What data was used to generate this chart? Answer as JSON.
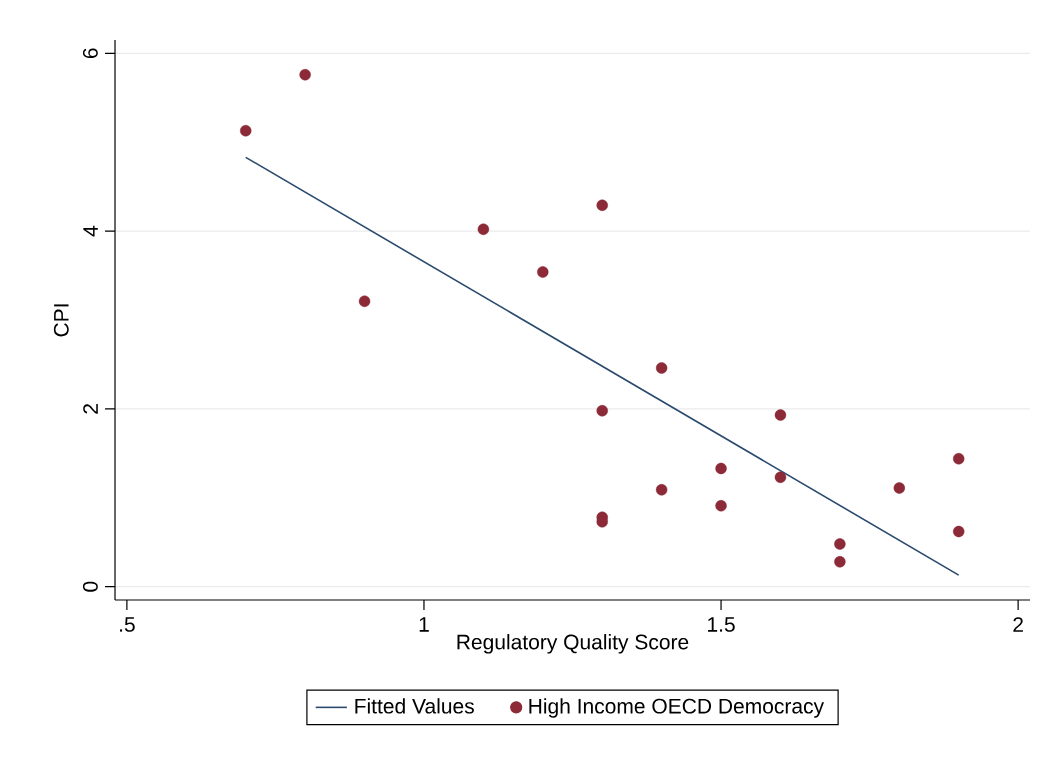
{
  "chart_data": {
    "type": "scatter",
    "xlabel": "Regulatory Quality Score",
    "ylabel": "CPI",
    "xlim": [
      0.48,
      2.02
    ],
    "ylim": [
      -0.15,
      6.15
    ],
    "xticks": [
      {
        "value": 0.5,
        "label": ".5"
      },
      1,
      1.5,
      2
    ],
    "yticks": [
      0,
      2,
      4,
      6
    ],
    "grid": "y",
    "legend": "bottom",
    "marker": "circle",
    "series": [
      {
        "name": "Fitted Values",
        "type": "line",
        "marker": "none",
        "color": "#2a4a6e",
        "x": [
          0.7,
          1.9
        ],
        "values": [
          4.83,
          0.13
        ]
      },
      {
        "name": "High Income OECD Democracy",
        "color": "#8c2a38",
        "x": [
          0.7,
          0.8,
          0.9,
          1.1,
          1.2,
          1.3,
          1.3,
          1.3,
          1.3,
          1.4,
          1.4,
          1.5,
          1.5,
          1.6,
          1.6,
          1.7,
          1.7,
          1.8,
          1.9,
          1.9
        ],
        "values": [
          5.13,
          5.76,
          3.21,
          4.02,
          3.54,
          4.29,
          1.98,
          0.78,
          0.73,
          2.46,
          1.09,
          1.33,
          0.91,
          1.93,
          1.23,
          0.48,
          0.28,
          1.11,
          1.44,
          0.62
        ]
      }
    ]
  }
}
